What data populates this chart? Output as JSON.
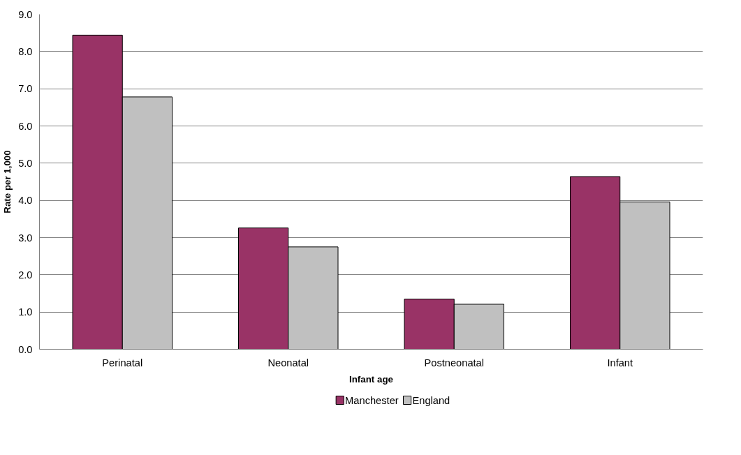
{
  "chart_data": {
    "type": "bar",
    "xlabel": "Infant age",
    "ylabel": "Rate per 1,000",
    "categories": [
      "Perinatal",
      "Neonatal",
      "Postneonatal",
      "Infant"
    ],
    "series": [
      {
        "name": "Manchester",
        "color": "#993366",
        "values": [
          8.44,
          3.26,
          1.35,
          4.64
        ]
      },
      {
        "name": "England",
        "color": "#c0c0c0",
        "values": [
          6.78,
          2.75,
          1.21,
          3.96
        ]
      }
    ],
    "ylim": [
      0,
      9
    ],
    "yticks": [
      {
        "value": 0,
        "label": "0.0"
      },
      {
        "value": 1,
        "label": "1.0"
      },
      {
        "value": 2,
        "label": "2.0"
      },
      {
        "value": 3,
        "label": "3.0"
      },
      {
        "value": 4,
        "label": "4.0"
      },
      {
        "value": 5,
        "label": "5.0"
      },
      {
        "value": 6,
        "label": "6.0"
      },
      {
        "value": 7,
        "label": "7.0"
      },
      {
        "value": 8,
        "label": "8.0"
      },
      {
        "value": 9,
        "label": "9.0"
      }
    ],
    "grid": "y",
    "legend": "bottom"
  }
}
